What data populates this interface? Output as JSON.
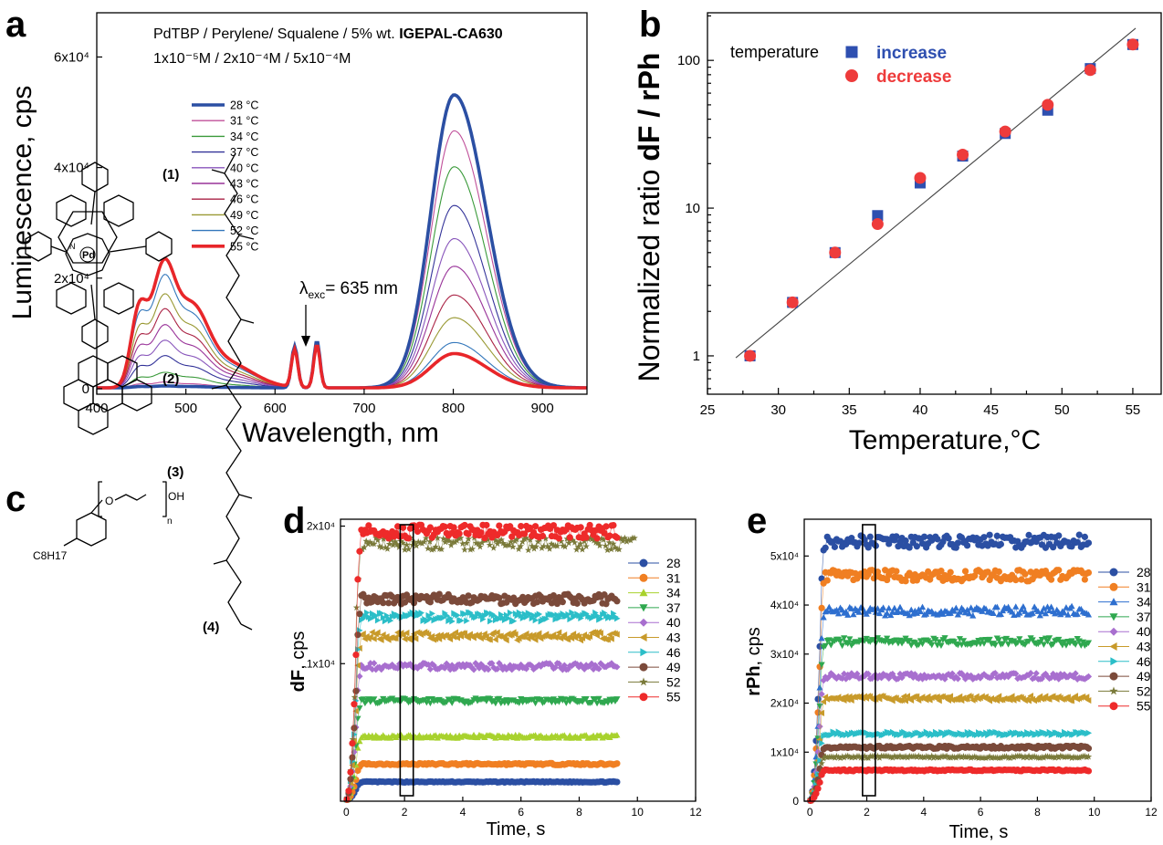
{
  "panels": {
    "a": "a",
    "b": "b",
    "c": "c",
    "d": "d",
    "e": "e"
  },
  "chemistry": {
    "labels": [
      "(1)",
      "(2)",
      "(3)",
      "(4)"
    ],
    "atoms": {
      "pd": "Pd",
      "n": "N",
      "oh": "OH",
      "o": "O",
      "c8h17": "C8H17",
      "n_sub": "n"
    }
  },
  "chart_data": [
    {
      "id": "a",
      "type": "line",
      "title_line1_prefix": "PdTBP  / Perylene/ Squalene / 5% wt. ",
      "title_line1_bold": "IGEPAL-CA630",
      "title_line2": "1x10⁻⁵M / 2x10⁻⁴M /  5x10⁻⁴M",
      "annotation": "λexc= 635 nm",
      "annotation_main": "λ",
      "annotation_sub": "exc",
      "annotation_rest": "= 635 nm",
      "xlabel": "Wavelength, nm",
      "ylabel": "Luminescence, cps",
      "xlim": [
        400,
        950
      ],
      "ylim": [
        -1000,
        68000
      ],
      "xticks": [
        "400",
        "500",
        "600",
        "700",
        "800",
        "900"
      ],
      "yticks": [
        "0",
        "2x10⁴",
        "4x10⁴",
        "6x10⁴"
      ],
      "ytick_values": [
        0,
        20000,
        40000,
        60000
      ],
      "legend_position": "upper-left",
      "legend": [
        "28 °C",
        "31 °C",
        "34 °C",
        "37 °C",
        "40 °C",
        "43 °C",
        "46 °C",
        "49 °C",
        "52 °C",
        "55 °C"
      ],
      "series": [
        {
          "name": "28 °C",
          "color": "#2b4fa3",
          "peaks": {
            "445": 200,
            "475": 300,
            "505": 200,
            "622": 7500,
            "647": 8500,
            "800": 53000
          }
        },
        {
          "name": "31 °C",
          "color": "#c0509a",
          "peaks": {
            "445": 600,
            "475": 900,
            "505": 600,
            "622": 7400,
            "647": 8400,
            "800": 46500
          }
        },
        {
          "name": "34 °C",
          "color": "#3a9a3a",
          "peaks": {
            "445": 1600,
            "475": 2400,
            "505": 1600,
            "622": 7300,
            "647": 8300,
            "800": 40000
          }
        },
        {
          "name": "37 °C",
          "color": "#333399",
          "peaks": {
            "445": 3300,
            "475": 5000,
            "505": 3200,
            "622": 7200,
            "647": 8200,
            "800": 33000
          }
        },
        {
          "name": "40 °C",
          "color": "#8855bb",
          "peaks": {
            "445": 4800,
            "475": 7400,
            "505": 4700,
            "622": 7100,
            "647": 8100,
            "800": 27000
          }
        },
        {
          "name": "43 °C",
          "color": "#993399",
          "peaks": {
            "445": 6400,
            "475": 9800,
            "505": 6300,
            "622": 7000,
            "647": 8000,
            "800": 22000
          }
        },
        {
          "name": "46 °C",
          "color": "#aa2244",
          "peaks": {
            "445": 7900,
            "475": 12300,
            "505": 7800,
            "622": 6900,
            "647": 7900,
            "800": 16800
          }
        },
        {
          "name": "49 °C",
          "color": "#999933",
          "peaks": {
            "445": 9400,
            "475": 14600,
            "505": 9300,
            "622": 6800,
            "647": 7800,
            "800": 12700
          }
        },
        {
          "name": "52 °C",
          "color": "#3377bb",
          "peaks": {
            "445": 11400,
            "475": 17600,
            "505": 11200,
            "622": 6800,
            "647": 7800,
            "800": 8200
          }
        },
        {
          "name": "55 °C",
          "color": "#e8262a",
          "peaks": {
            "445": 13000,
            "475": 20000,
            "505": 12800,
            "622": 6800,
            "647": 7800,
            "800": 6200
          }
        }
      ]
    },
    {
      "id": "b",
      "type": "scatter",
      "xlabel": "Temperature,°C",
      "ylabel_plain": "Normalized ratio ",
      "ylabel_bold": "dF / rPh",
      "xlim": [
        25,
        57
      ],
      "ylim_log": [
        0.55,
        210
      ],
      "yscale": "log",
      "xticks": [
        "25",
        "30",
        "35",
        "40",
        "45",
        "50",
        "55"
      ],
      "yticks": [
        "1",
        "10",
        "100"
      ],
      "legend_title": "temperature",
      "legend_position": "top-left",
      "series": [
        {
          "name": "increase",
          "color": "#2e4fb0",
          "marker": "square",
          "x": [
            28,
            31,
            34,
            37,
            40,
            43,
            46,
            49,
            52,
            55
          ],
          "y": [
            1.0,
            2.3,
            5.0,
            8.9,
            14.8,
            22.5,
            32,
            46,
            88,
            128
          ]
        },
        {
          "name": "decrease",
          "color": "#ee3b3b",
          "marker": "circle",
          "x": [
            28,
            31,
            34,
            37,
            40,
            43,
            46,
            49,
            52,
            55
          ],
          "y": [
            1.0,
            2.3,
            5.0,
            7.8,
            16,
            23,
            33,
            50,
            86,
            128
          ]
        }
      ],
      "fit_line": {
        "x": [
          27,
          55.2
        ],
        "y": [
          0.97,
          165
        ]
      }
    },
    {
      "id": "d",
      "type": "scatter",
      "xlabel": "Time, s",
      "ylabel_bold": "dF",
      "ylabel_rest": ",  cps",
      "xlim": [
        -0.2,
        12
      ],
      "ylim": [
        0,
        20500
      ],
      "xticks": [
        "0",
        "2",
        "4",
        "6",
        "8",
        "10",
        "12"
      ],
      "yticks": [
        "1x10⁴",
        "2x10⁴"
      ],
      "ytick_values": [
        10000,
        20000
      ],
      "highlight_window": [
        1.85,
        2.3
      ],
      "legend_position": "right",
      "series": [
        {
          "name": "28",
          "color": "#2b4fa3",
          "marker": "circle",
          "level": 1400,
          "tmax": 9.3
        },
        {
          "name": "31",
          "color": "#f07f22",
          "marker": "circle",
          "level": 2700,
          "tmax": 9.3
        },
        {
          "name": "34",
          "color": "#a8d22d",
          "marker": "triangle-up",
          "level": 4700,
          "tmax": 9.3
        },
        {
          "name": "37",
          "color": "#2fa84f",
          "marker": "triangle-down",
          "level": 7300,
          "tmax": 9.3
        },
        {
          "name": "40",
          "color": "#a86fcf",
          "marker": "diamond",
          "level": 9800,
          "tmax": 9.3
        },
        {
          "name": "43",
          "color": "#c89a2a",
          "marker": "triangle-left",
          "level": 12000,
          "tmax": 9.3
        },
        {
          "name": "46",
          "color": "#2bbec8",
          "marker": "triangle-right",
          "level": 13400,
          "tmax": 9.3
        },
        {
          "name": "49",
          "color": "#7b4a3a",
          "marker": "circle",
          "level": 14700,
          "tmax": 9.3
        },
        {
          "name": "52",
          "color": "#7a7a3a",
          "marker": "star",
          "level": 18700,
          "tmax": 9.9
        },
        {
          "name": "55",
          "color": "#ee2a2a",
          "marker": "circle",
          "level": 19600,
          "tmax": 9.3
        }
      ]
    },
    {
      "id": "e",
      "type": "scatter",
      "xlabel": "Time, s",
      "ylabel_bold": "rPh",
      "ylabel_rest": ",  cps",
      "xlim": [
        -0.2,
        12
      ],
      "ylim": [
        0,
        57500
      ],
      "xticks": [
        "0",
        "2",
        "4",
        "6",
        "8",
        "10",
        "12"
      ],
      "yticks": [
        "0",
        "1x10⁴",
        "2x10⁴",
        "3x10⁴",
        "4x10⁴",
        "5x10⁴"
      ],
      "ytick_values": [
        0,
        10000,
        20000,
        30000,
        40000,
        50000
      ],
      "highlight_window": [
        1.85,
        2.3
      ],
      "legend_position": "right",
      "series": [
        {
          "name": "28",
          "color": "#2b4fa3",
          "marker": "circle",
          "level": 53000,
          "tmax": 9.8
        },
        {
          "name": "31",
          "color": "#f07f22",
          "marker": "circle",
          "level": 46000,
          "tmax": 9.8
        },
        {
          "name": "34",
          "color": "#2e6fcf",
          "marker": "triangle-up",
          "level": 38800,
          "tmax": 9.8
        },
        {
          "name": "37",
          "color": "#2fa84f",
          "marker": "triangle-down",
          "level": 32500,
          "tmax": 9.8
        },
        {
          "name": "40",
          "color": "#a86fcf",
          "marker": "diamond",
          "level": 25500,
          "tmax": 9.8
        },
        {
          "name": "43",
          "color": "#c89a2a",
          "marker": "triangle-left",
          "level": 21000,
          "tmax": 9.8
        },
        {
          "name": "46",
          "color": "#2bbec8",
          "marker": "triangle-right",
          "level": 13800,
          "tmax": 9.8
        },
        {
          "name": "49",
          "color": "#7b4a3a",
          "marker": "circle",
          "level": 11000,
          "tmax": 9.8
        },
        {
          "name": "52",
          "color": "#7a7a3a",
          "marker": "star",
          "level": 9000,
          "tmax": 9.8
        },
        {
          "name": "55",
          "color": "#ee2a2a",
          "marker": "circle",
          "level": 6300,
          "tmax": 9.8
        }
      ]
    }
  ]
}
